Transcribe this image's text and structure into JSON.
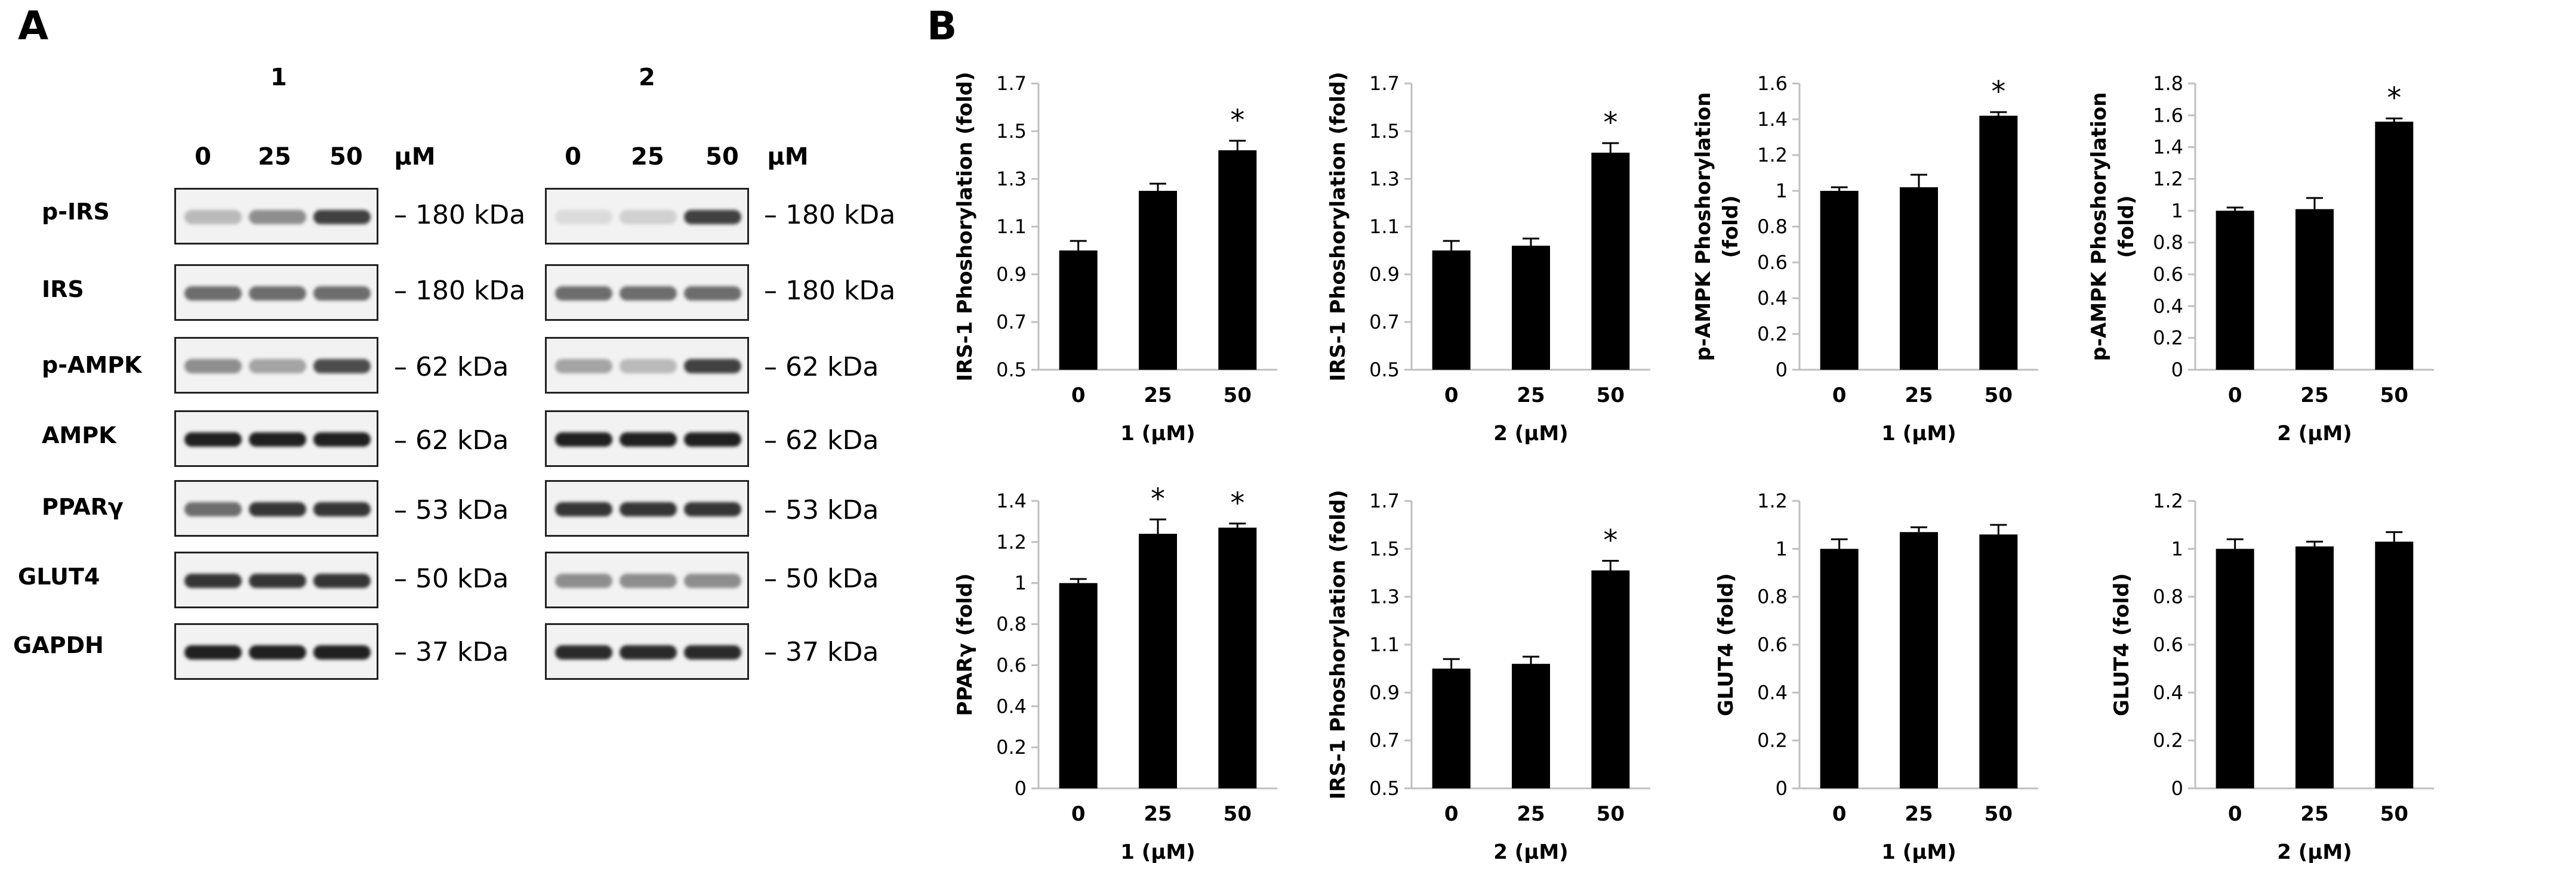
{
  "panels": {
    "a": "A",
    "b": "B"
  },
  "blots": [
    {
      "title": "1",
      "lanes": [
        "0",
        "25",
        "50"
      ],
      "unit": "μM"
    },
    {
      "title": "2",
      "lanes": [
        "0",
        "25",
        "50"
      ],
      "unit": "μM"
    }
  ],
  "blot_rows": [
    {
      "label": "p-IRS",
      "kda": "– 180 kDa"
    },
    {
      "label": "IRS",
      "kda": "– 180 kDa"
    },
    {
      "label": "p-AMPK",
      "kda": "– 62 kDa"
    },
    {
      "label": "AMPK",
      "kda": "– 62 kDa"
    },
    {
      "label": "PPARγ",
      "kda": "– 53 kDa"
    },
    {
      "label": "GLUT4",
      "kda": "– 50 kDa"
    },
    {
      "label": "GAPDH",
      "kda": "– 37 kDa"
    }
  ],
  "colors": {
    "bar": "#000000",
    "axis": "#bfbfbf",
    "text": "#000000"
  },
  "chart_data": [
    {
      "type": "bar",
      "title": "",
      "categories": [
        "0",
        "25",
        "50"
      ],
      "values": [
        1.0,
        1.25,
        1.42
      ],
      "errors": [
        0.04,
        0.03,
        0.04
      ],
      "significant": [
        false,
        false,
        true
      ],
      "sig_marker": "*",
      "xlabel": "1 (μM)",
      "ylabel": "IRS-1 Phoshorylation (fold)",
      "ylim": [
        0.5,
        1.7
      ],
      "yticks": [
        "0.5",
        "0.7",
        "0.9",
        "1.1",
        "1.3",
        "1.5",
        "1.7"
      ]
    },
    {
      "type": "bar",
      "title": "",
      "categories": [
        "0",
        "25",
        "50"
      ],
      "values": [
        1.0,
        1.02,
        1.41
      ],
      "errors": [
        0.04,
        0.03,
        0.04
      ],
      "significant": [
        false,
        false,
        true
      ],
      "sig_marker": "*",
      "xlabel": "2 (μM)",
      "ylabel": "IRS-1 Phoshorylation (fold)",
      "ylim": [
        0.5,
        1.7
      ],
      "yticks": [
        "0.5",
        "0.7",
        "0.9",
        "1.1",
        "1.3",
        "1.5",
        "1.7"
      ]
    },
    {
      "type": "bar",
      "title": "",
      "categories": [
        "0",
        "25",
        "50"
      ],
      "values": [
        1.0,
        1.02,
        1.42
      ],
      "errors": [
        0.02,
        0.07,
        0.02
      ],
      "significant": [
        false,
        false,
        true
      ],
      "sig_marker": "*",
      "xlabel": "1 (μM)",
      "ylabel_lines": [
        "p-AMPK Phoshorylation",
        "(fold)"
      ],
      "ylim": [
        0,
        1.6
      ],
      "yticks": [
        "0",
        "0.2",
        "0.4",
        "0.6",
        "0.8",
        "1",
        "1.2",
        "1.4",
        "1.6"
      ]
    },
    {
      "type": "bar",
      "title": "",
      "categories": [
        "0",
        "25",
        "50"
      ],
      "values": [
        1.0,
        1.01,
        1.56
      ],
      "errors": [
        0.02,
        0.07,
        0.02
      ],
      "significant": [
        false,
        false,
        true
      ],
      "sig_marker": "*",
      "xlabel": "2 (μM)",
      "ylabel_lines": [
        "p-AMPK Phoshorylation",
        "(fold)"
      ],
      "ylim": [
        0,
        1.8
      ],
      "yticks": [
        "0",
        "0.2",
        "0.4",
        "0.6",
        "0.8",
        "1",
        "1.2",
        "1.4",
        "1.6",
        "1.8"
      ]
    },
    {
      "type": "bar",
      "title": "",
      "categories": [
        "0",
        "25",
        "50"
      ],
      "values": [
        1.0,
        1.24,
        1.27
      ],
      "errors": [
        0.02,
        0.07,
        0.02
      ],
      "significant": [
        false,
        true,
        true
      ],
      "sig_marker": "*",
      "xlabel": "1 (μM)",
      "ylabel": "PPARγ (fold)",
      "ylim": [
        0,
        1.4
      ],
      "yticks": [
        "0",
        "0.2",
        "0.4",
        "0.6",
        "0.8",
        "1",
        "1.2",
        "1.4"
      ]
    },
    {
      "type": "bar",
      "title": "",
      "categories": [
        "0",
        "25",
        "50"
      ],
      "values": [
        1.0,
        1.02,
        1.41
      ],
      "errors": [
        0.04,
        0.03,
        0.04
      ],
      "significant": [
        false,
        false,
        true
      ],
      "sig_marker": "*",
      "xlabel": "2 (μM)",
      "ylabel": "IRS-1 Phoshorylation (fold)",
      "ylim": [
        0.5,
        1.7
      ],
      "yticks": [
        "0.5",
        "0.7",
        "0.9",
        "1.1",
        "1.3",
        "1.5",
        "1.7"
      ]
    },
    {
      "type": "bar",
      "title": "",
      "categories": [
        "0",
        "25",
        "50"
      ],
      "values": [
        1.0,
        1.07,
        1.06
      ],
      "errors": [
        0.04,
        0.02,
        0.04
      ],
      "significant": [
        false,
        false,
        false
      ],
      "sig_marker": "*",
      "xlabel": "1 (μM)",
      "ylabel": "GLUT4 (fold)",
      "ylim": [
        0,
        1.2
      ],
      "yticks": [
        "0",
        "0.2",
        "0.4",
        "0.6",
        "0.8",
        "1",
        "1.2"
      ]
    },
    {
      "type": "bar",
      "title": "",
      "categories": [
        "0",
        "25",
        "50"
      ],
      "values": [
        1.0,
        1.01,
        1.03
      ],
      "errors": [
        0.04,
        0.02,
        0.04
      ],
      "significant": [
        false,
        false,
        false
      ],
      "sig_marker": "*",
      "xlabel": "2 (μM)",
      "ylabel": "GLUT4 (fold)",
      "ylim": [
        0,
        1.2
      ],
      "yticks": [
        "0",
        "0.2",
        "0.4",
        "0.6",
        "0.8",
        "1",
        "1.2"
      ]
    }
  ]
}
